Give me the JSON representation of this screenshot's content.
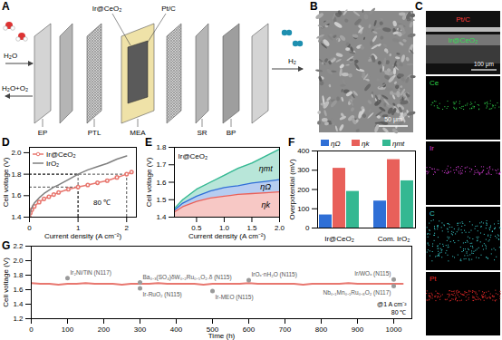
{
  "panel_labels": [
    "A",
    "B",
    "C",
    "D",
    "E",
    "F",
    "G"
  ],
  "schematic": {
    "catalyst_labels": [
      "Ir@CeO₂",
      "Pt/C"
    ],
    "inlet": "H₂O",
    "anode_outlet": "H₂O+O₂",
    "cathode_outlet": "H₂",
    "components": [
      "EP",
      "PTL",
      "MEA",
      "SR",
      "BP"
    ]
  },
  "sem": {
    "scale_bar": "50 μm"
  },
  "eds": {
    "layer_labels": [
      {
        "text": "Pt/C",
        "color": "#ff3b3b"
      },
      {
        "text": "Ir@CeO₂",
        "color": "#33dd55"
      }
    ],
    "scale_bar": "100 μm",
    "maps": [
      {
        "element": "Ce",
        "color": "#2fd04a"
      },
      {
        "element": "Ir",
        "color": "#d23cd2"
      },
      {
        "element": "C",
        "color": "#3cd2d2"
      },
      {
        "element": "Pt",
        "color": "#e82a2a"
      }
    ]
  },
  "chart_data": [
    {
      "type": "line",
      "xlabel": "Current density (A cm⁻²)",
      "ylabel": "Cell voltage (V)",
      "x": [
        0,
        0.02,
        0.05,
        0.1,
        0.2,
        0.3,
        0.4,
        0.5,
        0.6,
        0.8,
        1,
        1.2,
        1.4,
        1.6,
        1.8,
        2,
        2.1
      ],
      "series": [
        {
          "name": "Ir@CeO₂",
          "color": "#e8776f",
          "marker": "circle",
          "values": [
            1.4,
            1.44,
            1.47,
            1.5,
            1.54,
            1.57,
            1.59,
            1.61,
            1.63,
            1.66,
            1.68,
            1.7,
            1.72,
            1.74,
            1.77,
            1.8,
            1.82
          ]
        },
        {
          "name": "IrO₂",
          "color": "#7f7f7f",
          "values": [
            1.4,
            1.45,
            1.49,
            1.53,
            1.58,
            1.62,
            1.65,
            1.68,
            1.7,
            1.75,
            1.8,
            1.84,
            1.87,
            1.9,
            1.94,
            1.97,
            null
          ]
        }
      ],
      "xlim": [
        0,
        2.2
      ],
      "xticks": [
        0,
        1,
        2
      ],
      "ylim": [
        1.4,
        2.05
      ],
      "yticks": [
        1.4,
        1.6,
        1.8,
        {
          "value": 2,
          "label": "2.0"
        }
      ],
      "legend": "top-left",
      "annotations": [
        "80 ℃"
      ],
      "reference_points": [
        {
          "x": 1,
          "y": 1.68
        },
        {
          "x": 1,
          "y": 1.8
        },
        {
          "x": 2,
          "y": 1.8
        }
      ]
    },
    {
      "type": "area",
      "title": "Ir@CeO₂",
      "xlabel": "Current density (A cm⁻²)",
      "ylabel": "Cell voltage (V)",
      "x": [
        0.1,
        0.25,
        0.5,
        0.75,
        1,
        1.25,
        1.5,
        1.75,
        2
      ],
      "series": [
        {
          "name": "ηk",
          "color": "#e8605a",
          "values": [
            1.43,
            1.46,
            1.49,
            1.51,
            1.52,
            1.53,
            1.535,
            1.54,
            1.545
          ]
        },
        {
          "name": "ηΩ",
          "color": "#2f6fd6",
          "values": [
            1.44,
            1.48,
            1.52,
            1.55,
            1.57,
            1.58,
            1.595,
            1.605,
            1.615
          ]
        },
        {
          "name": "ηmt",
          "color": "#34b892",
          "values": [
            1.45,
            1.5,
            1.56,
            1.6,
            1.64,
            1.68,
            1.71,
            1.75,
            1.79
          ]
        }
      ],
      "xlim": [
        0.1,
        2
      ],
      "xticks": [
        0.5,
        {
          "value": 1,
          "label": "1.0"
        },
        1.5,
        {
          "value": 2,
          "label": "2.0"
        }
      ],
      "ylim": [
        1.4,
        1.8
      ],
      "yticks": [
        1.4,
        1.5,
        1.6,
        1.7,
        1.8
      ]
    },
    {
      "type": "bar",
      "ylabel": "Overpotential (mV)",
      "categories": [
        "Ir@CeO₂",
        "Com. IrO₂"
      ],
      "series": [
        {
          "name": "ηΩ",
          "color": "#2f6fd6",
          "values": [
            68,
            140
          ]
        },
        {
          "name": "ηk",
          "color": "#e8605a",
          "values": [
            310,
            355
          ]
        },
        {
          "name": "ηmt",
          "color": "#34b892",
          "values": [
            190,
            245
          ]
        }
      ],
      "ylim": [
        0,
        400
      ],
      "yticks": [
        0,
        100,
        200,
        300,
        400
      ],
      "legend": "top"
    },
    {
      "type": "line",
      "xlabel": "Time (h)",
      "ylabel": "Cell voltage (V)",
      "x": [
        0,
        25,
        50,
        75,
        100,
        125,
        150,
        175,
        200,
        225,
        250,
        275,
        300,
        325,
        350,
        375,
        400,
        425,
        450,
        475,
        500,
        525,
        550,
        575,
        600,
        625,
        650,
        675,
        700,
        725,
        750,
        775,
        800,
        825,
        850,
        875,
        900,
        925,
        950,
        975,
        1000,
        1025
      ],
      "series": [
        {
          "color": "#e8776f",
          "values": [
            1.69,
            1.68,
            1.68,
            1.67,
            1.68,
            1.68,
            1.69,
            1.68,
            1.68,
            1.68,
            1.67,
            1.68,
            1.68,
            1.68,
            1.69,
            1.68,
            1.68,
            1.68,
            1.68,
            1.67,
            1.68,
            1.68,
            1.68,
            1.68,
            1.69,
            1.68,
            1.68,
            1.68,
            1.68,
            1.68,
            1.67,
            1.68,
            1.68,
            1.68,
            1.68,
            1.69,
            1.68,
            1.68,
            1.68,
            1.68,
            1.68,
            1.68
          ]
        }
      ],
      "xlim": [
        0,
        1050
      ],
      "xticks": [
        0,
        100,
        200,
        300,
        400,
        500,
        600,
        700,
        800,
        900,
        1000
      ],
      "ylim": [
        1.2,
        2.2
      ],
      "yticks": [
        1.2,
        1.4,
        1.6,
        1.8,
        {
          "value": 2,
          "label": "2.0"
        },
        2.2
      ],
      "comparisons": {
        "color": "#9a9a9a",
        "points": [
          {
            "x": 100,
            "y": 1.76,
            "label": "Ir₂Ni/TiN (N117)"
          },
          {
            "x": 300,
            "y": 1.7,
            "label": "Ba₀.₃(SO₄)δW₀.₂Ru₀.₅O₂₋δ (N115)"
          },
          {
            "x": 300,
            "y": 1.62,
            "label": "Ir-RuO₂ (N115)"
          },
          {
            "x": 500,
            "y": 1.58,
            "label": "Ir-MEO (N115)"
          },
          {
            "x": 600,
            "y": 1.73,
            "label": "IrOₓ·nH₂O (N115)"
          },
          {
            "x": 1000,
            "y": 1.74,
            "label": "Ir/WOₓ (N115)"
          },
          {
            "x": 1000,
            "y": 1.65,
            "label": "Nb₀.₁Mn₀.₁Ru₀.₈O₂ (N117)"
          }
        ]
      },
      "annotations": [
        "@1 A cm⁻²",
        "80 ℃"
      ]
    }
  ]
}
